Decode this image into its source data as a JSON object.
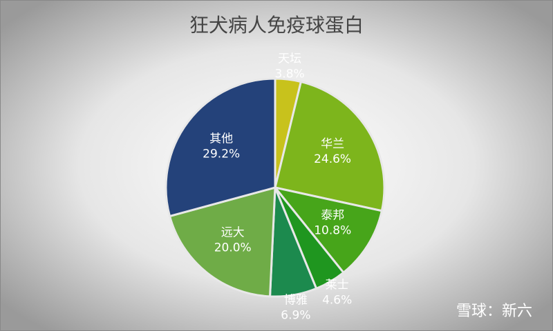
{
  "chart_data": {
    "type": "pie",
    "title": "狂犬病人免疫球蛋白",
    "categories": [
      "天坛",
      "华兰",
      "泰邦",
      "莱士",
      "博雅",
      "远大",
      "其他"
    ],
    "values": [
      3.8,
      24.6,
      10.8,
      4.6,
      6.9,
      20.0,
      29.2
    ],
    "value_labels": [
      "3.8%",
      "24.6%",
      "10.8%",
      "4.6%",
      "6.9%",
      "20.0%",
      "29.2%"
    ],
    "colors": [
      "#c8c21c",
      "#7db51c",
      "#47a51a",
      "#1f961f",
      "#1c8a4e",
      "#6fac47",
      "#24427a"
    ],
    "watermark": "雪球：新六"
  }
}
